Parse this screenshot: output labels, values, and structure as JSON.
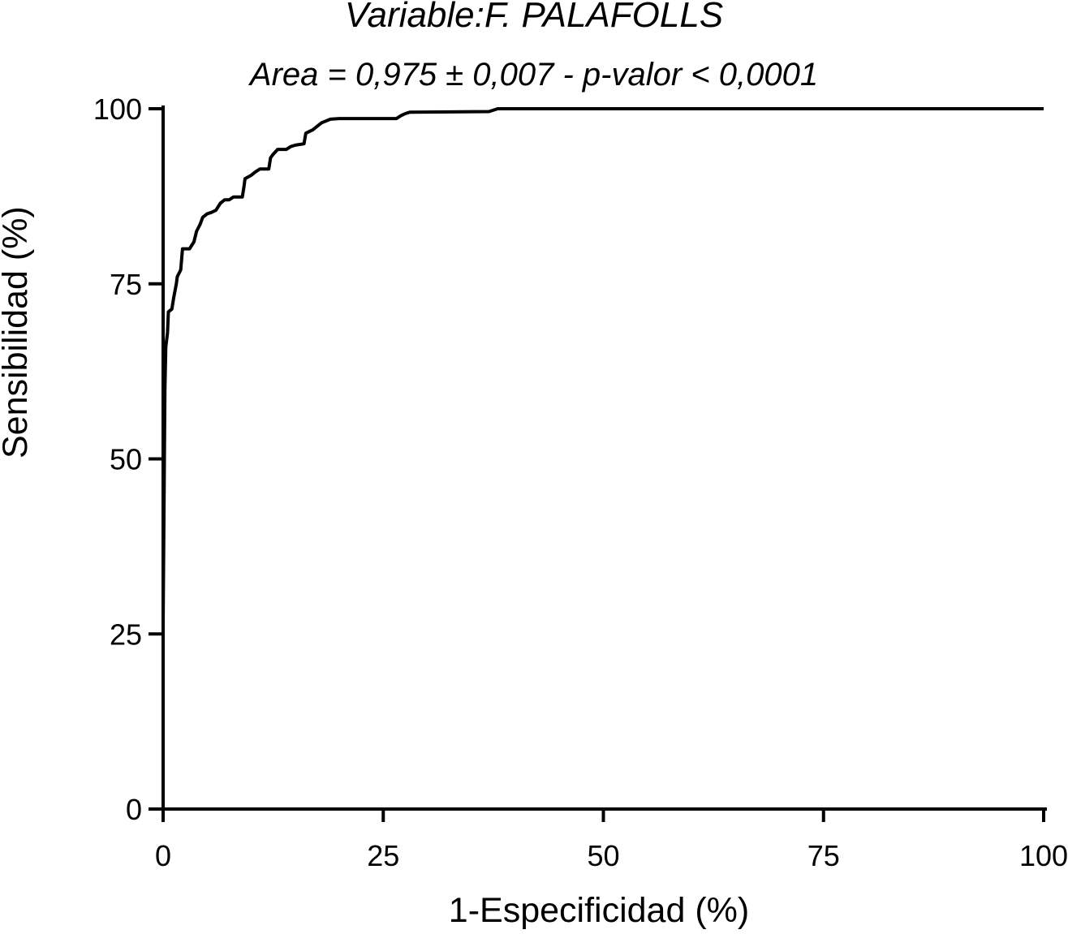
{
  "chart_data": {
    "type": "line",
    "title": "Variable:F. PALAFOLLS",
    "subtitle": "Area = 0,975 ± 0,007 - p-valor < 0,0001",
    "xlabel": "1-Especificidad (%)",
    "ylabel": "Sensibilidad (%)",
    "xlim": [
      0,
      100
    ],
    "ylim": [
      0,
      100
    ],
    "xticks": [
      "0",
      "25",
      "50",
      "75",
      "100"
    ],
    "yticks": [
      "0",
      "25",
      "50",
      "75",
      "100"
    ],
    "grid": false,
    "legend": "none",
    "line_color": "#000000",
    "series": [
      {
        "x": [
          0,
          0,
          0.2,
          0.3,
          0.5,
          0.6,
          1.0,
          1.2,
          1.5,
          1.6,
          2.0,
          2.2,
          2.5,
          3.0,
          3.5,
          3.8,
          4.2,
          4.5,
          5.0,
          5.5,
          6.0,
          6.5,
          7.0,
          7.5,
          8.0,
          8.5,
          9.0,
          9.2,
          9.3,
          10.0,
          10.5,
          11.0,
          12.0,
          12.2,
          12.5,
          13.0,
          14.0,
          14.5,
          15.0,
          16.0,
          16.2,
          17.0,
          17.5,
          18.0,
          19.0,
          20.0,
          24.0,
          26.5,
          27.0,
          27.5,
          28.0,
          37.0,
          38.0,
          100
        ],
        "y": [
          0,
          26.4,
          60.0,
          66.0,
          68.0,
          71.0,
          71.4,
          73.0,
          75.0,
          76.0,
          77.0,
          80.0,
          80.0,
          80.0,
          81.0,
          82.5,
          83.5,
          84.5,
          85.0,
          85.2,
          85.5,
          86.5,
          87.0,
          87.0,
          87.4,
          87.4,
          87.4,
          89.0,
          90.0,
          90.5,
          91.0,
          91.4,
          91.4,
          93.0,
          93.5,
          94.2,
          94.2,
          94.6,
          94.8,
          95.0,
          96.5,
          97.0,
          97.5,
          98.0,
          98.5,
          98.6,
          98.6,
          98.6,
          99.0,
          99.3,
          99.5,
          99.6,
          100,
          100
        ]
      }
    ]
  }
}
